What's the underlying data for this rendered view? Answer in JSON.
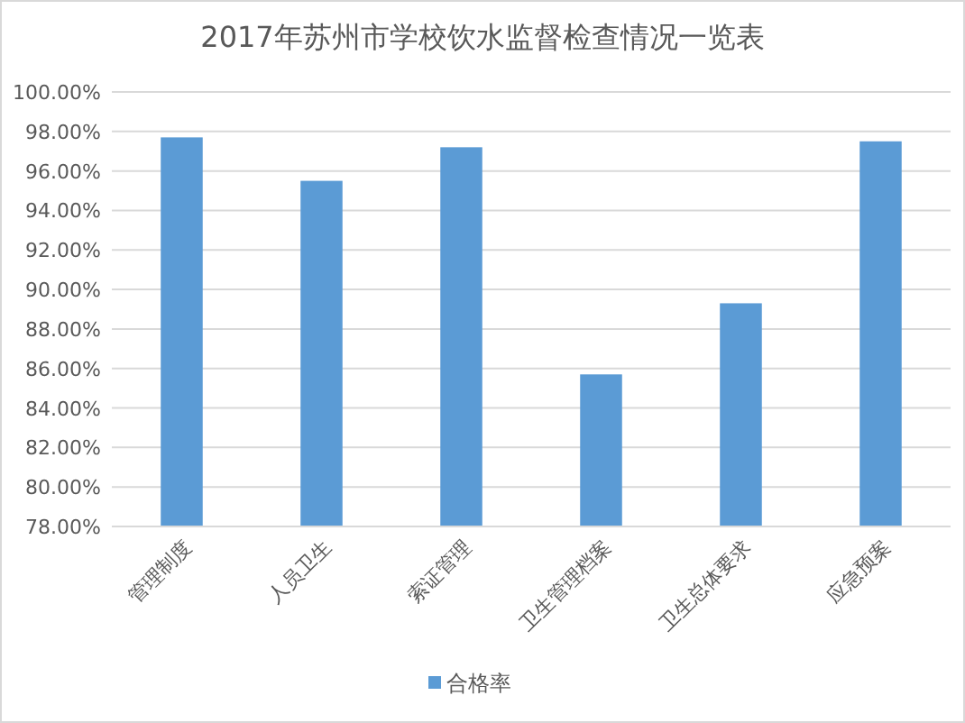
{
  "chart_data": {
    "type": "bar",
    "title": "2017年苏州市学校饮水监督检查情况一览表",
    "categories": [
      "管理制度",
      "人员卫生",
      "索证管理",
      "卫生管理档案",
      "卫生总体要求",
      "应急预案"
    ],
    "series": [
      {
        "name": "合格率",
        "color": "#5b9bd5",
        "values": [
          97.7,
          95.5,
          97.2,
          85.7,
          89.3,
          97.5
        ]
      }
    ],
    "ylim": [
      78,
      100
    ],
    "yticks": [
      {
        "value": 78,
        "label": "78.00%"
      },
      {
        "value": 80,
        "label": "80.00%"
      },
      {
        "value": 82,
        "label": "82.00%"
      },
      {
        "value": 84,
        "label": "84.00%"
      },
      {
        "value": 86,
        "label": "86.00%"
      },
      {
        "value": 88,
        "label": "88.00%"
      },
      {
        "value": 90,
        "label": "90.00%"
      },
      {
        "value": 92,
        "label": "92.00%"
      },
      {
        "value": 94,
        "label": "94.00%"
      },
      {
        "value": 96,
        "label": "96.00%"
      },
      {
        "value": 98,
        "label": "98.00%"
      },
      {
        "value": 100,
        "label": "100.00%"
      }
    ],
    "grid": "y",
    "legend": "bottom"
  }
}
